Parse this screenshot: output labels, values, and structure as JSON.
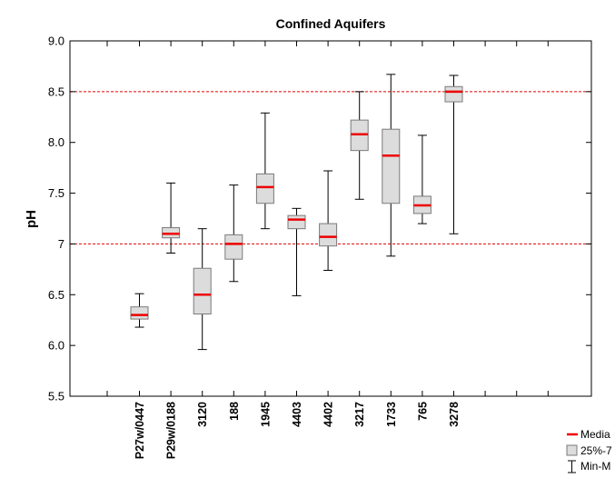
{
  "chart_data": {
    "type": "boxplot",
    "title": "Confined Aquifers",
    "xlabel": "",
    "ylabel": "pH",
    "ylim": [
      5.5,
      9.0
    ],
    "yticks": [
      "5.5",
      "6.0",
      "6.5",
      "7",
      "7.5",
      "8.0",
      "8.5",
      "9.0"
    ],
    "reference_lines": [
      7.0,
      8.5
    ],
    "reference_line_color": "#e00000",
    "box_fill": "#dcdcdc",
    "median_color": "#ee0000",
    "grid": false,
    "legend_position": "bottom-right",
    "legend": [
      "Media",
      "25%-7",
      "Min-M"
    ],
    "categories": [
      "P27w/0447",
      "P29w/0188",
      "3120",
      "188",
      "1945",
      "4403",
      "4402",
      "3217",
      "1733",
      "765",
      "3278"
    ],
    "series": [
      {
        "min": 6.18,
        "q1": 6.26,
        "median": 6.3,
        "q3": 6.38,
        "max": 6.51
      },
      {
        "min": 6.91,
        "q1": 7.06,
        "median": 7.1,
        "q3": 7.16,
        "max": 7.6
      },
      {
        "min": 5.96,
        "q1": 6.31,
        "median": 6.5,
        "q3": 6.76,
        "max": 7.15
      },
      {
        "min": 6.63,
        "q1": 6.85,
        "median": 7.0,
        "q3": 7.09,
        "max": 7.58
      },
      {
        "min": 7.15,
        "q1": 7.4,
        "median": 7.56,
        "q3": 7.69,
        "max": 8.29
      },
      {
        "min": 6.49,
        "q1": 7.15,
        "median": 7.24,
        "q3": 7.28,
        "max": 7.35
      },
      {
        "min": 6.74,
        "q1": 6.98,
        "median": 7.07,
        "q3": 7.2,
        "max": 7.72
      },
      {
        "min": 7.44,
        "q1": 7.92,
        "median": 8.08,
        "q3": 8.22,
        "max": 8.5
      },
      {
        "min": 6.88,
        "q1": 7.4,
        "median": 7.87,
        "q3": 8.13,
        "max": 8.67
      },
      {
        "min": 7.2,
        "q1": 7.3,
        "median": 7.38,
        "q3": 7.47,
        "max": 8.07
      },
      {
        "min": 7.1,
        "q1": 8.4,
        "median": 8.5,
        "q3": 8.55,
        "max": 8.66
      }
    ]
  }
}
